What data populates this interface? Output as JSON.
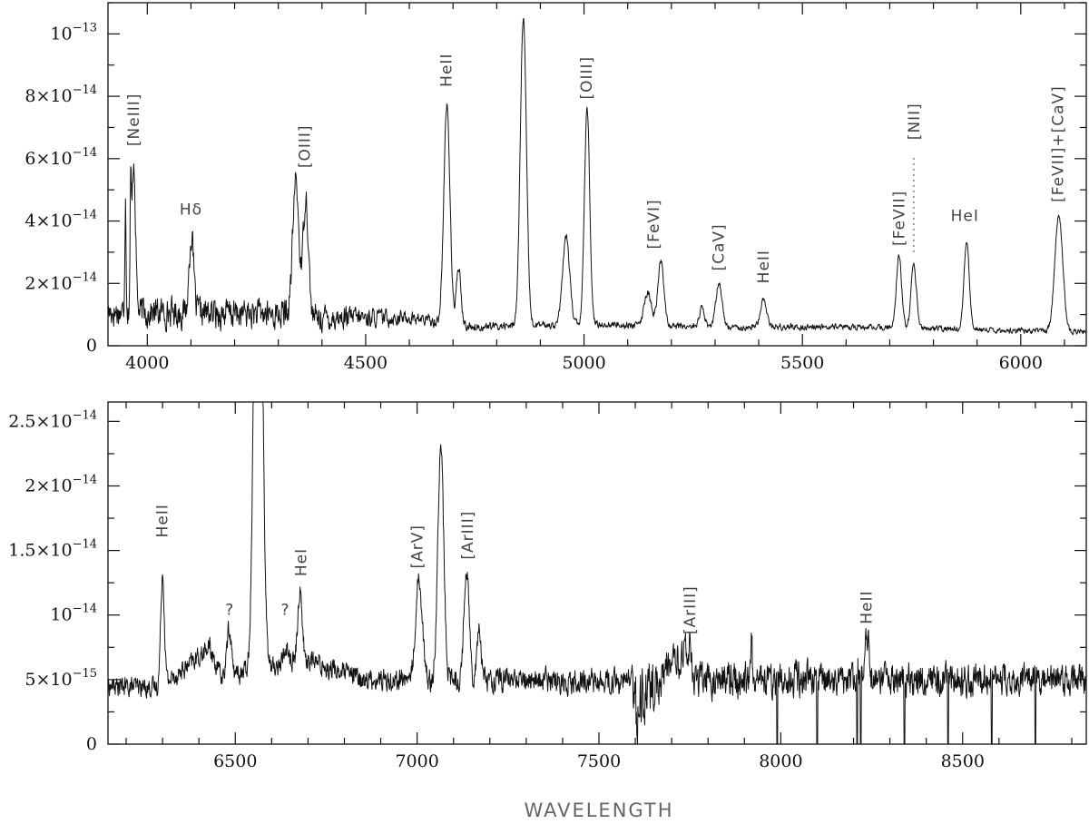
{
  "chart_data": [
    {
      "type": "line",
      "title": "",
      "xlabel": "",
      "ylabel": "",
      "xlim": [
        3910,
        6150
      ],
      "ylim": [
        0,
        1.1e-13
      ],
      "grid": false,
      "x_ticks": [
        {
          "value": 4000,
          "label": "4000"
        },
        {
          "value": 4500,
          "label": "4500"
        },
        {
          "value": 5000,
          "label": "5000"
        },
        {
          "value": 5500,
          "label": "5500"
        },
        {
          "value": 6000,
          "label": "6000"
        }
      ],
      "y_ticks": [
        {
          "value": 0,
          "mant": "0",
          "exp": ""
        },
        {
          "value": 2e-14,
          "mant": "2×10",
          "exp": "−14"
        },
        {
          "value": 4e-14,
          "mant": "4×10",
          "exp": "−14"
        },
        {
          "value": 6e-14,
          "mant": "6×10",
          "exp": "−14"
        },
        {
          "value": 8e-14,
          "mant": "8×10",
          "exp": "−14"
        },
        {
          "value": 1e-13,
          "mant": "10",
          "exp": "−13"
        }
      ],
      "continuum": [
        [
          3910,
          1.1e-14
        ],
        [
          4320,
          1e-14
        ],
        [
          4330,
          9e-15
        ],
        [
          4600,
          9e-15
        ],
        [
          4750,
          6e-15
        ],
        [
          5000,
          7e-15
        ],
        [
          5300,
          6e-15
        ],
        [
          5600,
          6e-15
        ],
        [
          6150,
          4.5e-15
        ]
      ],
      "noise": [
        [
          3910,
          4e-15
        ],
        [
          4330,
          4e-15
        ],
        [
          4600,
          1.8e-15
        ],
        [
          4800,
          1e-15
        ],
        [
          6150,
          7e-16
        ]
      ],
      "lines": [
        {
          "x": 3950,
          "peak": 4.8e-14,
          "w": 1.5
        },
        {
          "x": 3962,
          "peak": 4.4e-14,
          "w": 1.5
        },
        {
          "x": 3969,
          "peak": 6e-14,
          "w": 4
        },
        {
          "x": 4101,
          "peak": 3.6e-14,
          "w": 5
        },
        {
          "x": 4340,
          "peak": 5.3e-14,
          "w": 7
        },
        {
          "x": 4363,
          "peak": 4.8e-14,
          "w": 6
        },
        {
          "x": 4686,
          "peak": 7.7e-14,
          "w": 7
        },
        {
          "x": 4713,
          "peak": 2.5e-14,
          "w": 5
        },
        {
          "x": 4861,
          "peak": 1.05e-13,
          "w": 7
        },
        {
          "x": 4959,
          "peak": 3.5e-14,
          "w": 8
        },
        {
          "x": 5007,
          "peak": 7.6e-14,
          "w": 6
        },
        {
          "x": 5146,
          "peak": 1.7e-14,
          "w": 8
        },
        {
          "x": 5176,
          "peak": 2.7e-14,
          "w": 7
        },
        {
          "x": 5270,
          "peak": 1.2e-14,
          "w": 6
        },
        {
          "x": 5309,
          "peak": 2e-14,
          "w": 7
        },
        {
          "x": 5411,
          "peak": 1.5e-14,
          "w": 7
        },
        {
          "x": 5721,
          "peak": 2.9e-14,
          "w": 6
        },
        {
          "x": 5755,
          "peak": 2.6e-14,
          "w": 6
        },
        {
          "x": 5876,
          "peak": 3.3e-14,
          "w": 6
        },
        {
          "x": 6087,
          "peak": 4.2e-14,
          "w": 9
        }
      ],
      "annotations": [
        {
          "text": "[NeIII]",
          "x": 3968,
          "y": 6.4e-14,
          "rotate": -90
        },
        {
          "text": "Hδ",
          "x": 4100,
          "y": 4.2e-14,
          "rotate": 0
        },
        {
          "text": "[OIII]",
          "x": 4360,
          "y": 5.7e-14,
          "rotate": -90
        },
        {
          "text": "HeII",
          "x": 4684,
          "y": 8.3e-14,
          "rotate": -90
        },
        {
          "text": "[OIII]",
          "x": 5005,
          "y": 7.9e-14,
          "rotate": -90
        },
        {
          "text": "[FeVI]",
          "x": 5159,
          "y": 3.1e-14,
          "rotate": -90
        },
        {
          "text": "[CaV]",
          "x": 5307,
          "y": 2.4e-14,
          "rotate": -90
        },
        {
          "text": "HeII",
          "x": 5410,
          "y": 2e-14,
          "rotate": -90
        },
        {
          "text": "[FeVII]",
          "x": 5721,
          "y": 3.2e-14,
          "rotate": -90
        },
        {
          "text": "[NII]",
          "x": 5755,
          "y": 6.6e-14,
          "rotate": -90
        },
        {
          "text": "HeI",
          "x": 5872,
          "y": 4e-14,
          "rotate": 0
        },
        {
          "text": "[FeVII]+[CaV]",
          "x": 6085,
          "y": 4.6e-14,
          "rotate": -90
        }
      ],
      "dotted_markers": [
        {
          "x": 5755,
          "y_from": 3e-14,
          "y_to": 6.1e-14
        }
      ]
    },
    {
      "type": "line",
      "title": "",
      "xlabel": "WAVELENGTH",
      "ylabel": "",
      "xlim": [
        6150,
        8840
      ],
      "ylim": [
        0,
        2.65e-14
      ],
      "grid": false,
      "x_ticks": [
        {
          "value": 6500,
          "label": "6500"
        },
        {
          "value": 7000,
          "label": "7000"
        },
        {
          "value": 7500,
          "label": "7500"
        },
        {
          "value": 8000,
          "label": "8000"
        },
        {
          "value": 8500,
          "label": "8500"
        }
      ],
      "y_ticks": [
        {
          "value": 0,
          "mant": "0",
          "exp": ""
        },
        {
          "value": 5e-15,
          "mant": "5×10",
          "exp": "−15"
        },
        {
          "value": 1e-14,
          "mant": "10",
          "exp": "−14"
        },
        {
          "value": 1.5e-14,
          "mant": "1.5×10",
          "exp": "−14"
        },
        {
          "value": 2e-14,
          "mant": "2×10",
          "exp": "−14"
        },
        {
          "value": 2.5e-14,
          "mant": "2.5×10",
          "exp": "−14"
        }
      ],
      "continuum": [
        [
          6150,
          4.5e-15
        ],
        [
          6290,
          4.4e-15
        ],
        [
          6360,
          5.8e-15
        ],
        [
          6430,
          7.5e-15
        ],
        [
          6460,
          5.2e-15
        ],
        [
          6700,
          6.5e-15
        ],
        [
          6850,
          5e-15
        ],
        [
          7200,
          5e-15
        ],
        [
          7590,
          4.8e-15
        ],
        [
          7600,
          2.5e-15
        ],
        [
          7680,
          5.5e-15
        ],
        [
          7740,
          7e-15
        ],
        [
          7760,
          5e-15
        ],
        [
          8840,
          5e-15
        ]
      ],
      "noise": [
        [
          6150,
          6e-16
        ],
        [
          7590,
          8e-16
        ],
        [
          7600,
          2.5e-15
        ],
        [
          7680,
          1.2e-15
        ],
        [
          8840,
          9e-16
        ]
      ],
      "lines": [
        {
          "x": 6300,
          "peak": 1.33e-14,
          "w": 5
        },
        {
          "x": 6483,
          "peak": 9e-15,
          "w": 6
        },
        {
          "x": 6563,
          "peak": 6e-14,
          "w": 10
        },
        {
          "x": 6640,
          "peak": 7.5e-15,
          "w": 7
        },
        {
          "x": 6678,
          "peak": 1.2e-14,
          "w": 6
        },
        {
          "x": 7005,
          "peak": 1.3e-14,
          "w": 9
        },
        {
          "x": 7065,
          "peak": 2.3e-14,
          "w": 8
        },
        {
          "x": 7136,
          "peak": 1.38e-14,
          "w": 7
        },
        {
          "x": 7170,
          "peak": 9e-15,
          "w": 6
        },
        {
          "x": 7590,
          "peak": 6.5e-15,
          "w": 2
        },
        {
          "x": 7751,
          "peak": 7.2e-15,
          "w": 4
        },
        {
          "x": 7920,
          "peak": 8.5e-15,
          "w": 1.5
        },
        {
          "x": 8237,
          "peak": 8.5e-15,
          "w": 5
        }
      ],
      "absorptions": [
        7990,
        8100,
        8210,
        8220,
        8340,
        8460,
        8580,
        8700
      ],
      "annotations": [
        {
          "text": "HeII",
          "x": 6298,
          "y": 1.6e-14,
          "rotate": -90
        },
        {
          "text": "?",
          "x": 6485,
          "y": 1e-14,
          "rotate": 0
        },
        {
          "text": "?",
          "x": 6638,
          "y": 1e-14,
          "rotate": 0
        },
        {
          "text": "HeI",
          "x": 6680,
          "y": 1.3e-14,
          "rotate": -90
        },
        {
          "text": "[ArV]",
          "x": 7000,
          "y": 1.36e-14,
          "rotate": -90
        },
        {
          "text": "[ArIII]",
          "x": 7138,
          "y": 1.43e-14,
          "rotate": -90
        },
        {
          "text": "[ArIII]",
          "x": 7750,
          "y": 8.5e-15,
          "rotate": -90
        },
        {
          "text": "HeII",
          "x": 8235,
          "y": 9.3e-15,
          "rotate": -90
        }
      ],
      "dotted_markers": []
    }
  ]
}
